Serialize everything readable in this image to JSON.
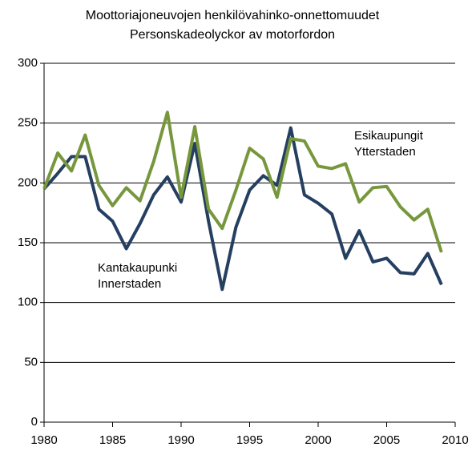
{
  "chart_data": {
    "type": "line",
    "title": [
      "Moottoriajoneuvojen henkilövahinko-onnettomuudet",
      "Personskadeolyckor av motorfordon"
    ],
    "x": [
      1980,
      1981,
      1982,
      1983,
      1984,
      1985,
      1986,
      1987,
      1988,
      1989,
      1990,
      1991,
      1992,
      1993,
      1994,
      1995,
      1996,
      1997,
      1998,
      1999,
      2000,
      2001,
      2002,
      2003,
      2004,
      2005,
      2006,
      2007,
      2008,
      2009
    ],
    "series": [
      {
        "name": [
          "Kantakaupunki",
          "Innerstaden"
        ],
        "color": "#253f61",
        "values": [
          195,
          208,
          222,
          222,
          178,
          168,
          145,
          166,
          190,
          205,
          184,
          233,
          168,
          111,
          163,
          194,
          206,
          198,
          246,
          190,
          183,
          174,
          137,
          160,
          134,
          137,
          125,
          124,
          141,
          115
        ]
      },
      {
        "name": [
          "Esikaupungit",
          "Ytterstaden"
        ],
        "color": "#77973d",
        "values": [
          195,
          225,
          210,
          240,
          198,
          181,
          196,
          185,
          218,
          259,
          188,
          247,
          178,
          162,
          194,
          229,
          220,
          188,
          237,
          235,
          214,
          212,
          216,
          184,
          196,
          197,
          180,
          169,
          178,
          142
        ]
      }
    ],
    "xlim": [
      1980,
      2010
    ],
    "xticks": [
      1980,
      1985,
      1990,
      1995,
      2000,
      2005,
      2010
    ],
    "ylim": [
      0,
      300
    ],
    "yticks": [
      0,
      50,
      100,
      150,
      200,
      250,
      300
    ],
    "grid": true
  }
}
